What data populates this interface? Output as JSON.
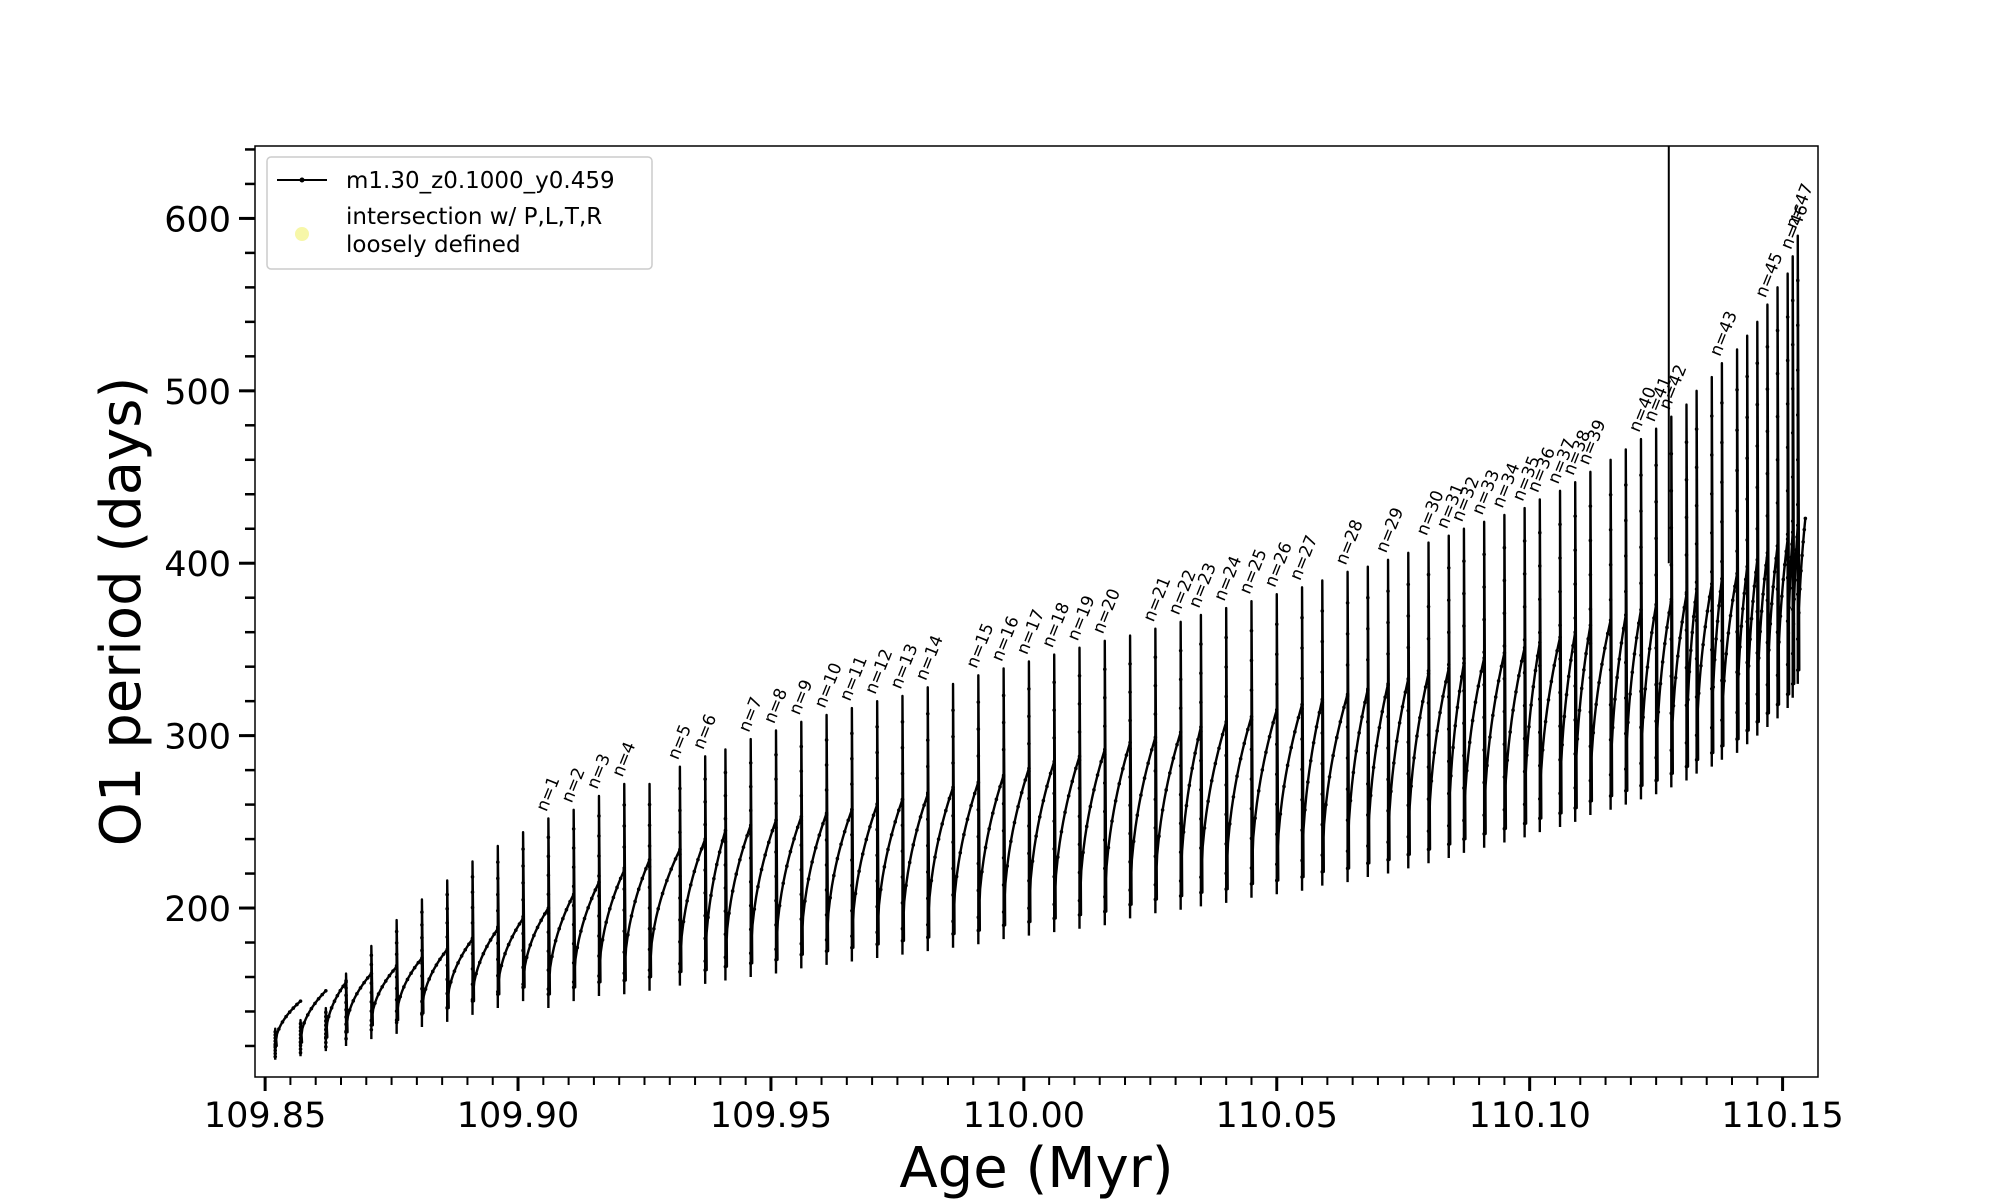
{
  "chart_data": {
    "type": "line",
    "title": "",
    "xlabel": "Age (Myr)",
    "ylabel": "O1 period (days)",
    "xlim": [
      109.848,
      110.157
    ],
    "ylim": [
      102,
      642
    ],
    "xticks": [
      109.85,
      109.9,
      109.95,
      110.0,
      110.05,
      110.1,
      110.15
    ],
    "xtick_labels": [
      "109.85",
      "109.90",
      "109.95",
      "110.00",
      "110.05",
      "110.10",
      "110.15"
    ],
    "yticks": [
      200,
      300,
      400,
      500,
      600
    ],
    "ytick_labels": [
      "200",
      "300",
      "400",
      "500",
      "600"
    ],
    "grid": false,
    "legend": {
      "position": "top-left",
      "entries": [
        {
          "label": "m1.30_z0.1000_y0.459",
          "style": "line-with-dots",
          "color": "#000000"
        },
        {
          "label_lines": [
            "intersection w/ P,L,T,R",
            "loosely defined"
          ],
          "style": "marker",
          "color": "#f7f7a8"
        }
      ]
    },
    "series": [
      {
        "name": "m1.30_z0.1000_y0.459",
        "color": "#000000",
        "description": "sawtooth of thermal pulses; each pulse starts near the lower envelope, spikes to a peak, then relaxes along the rising upper envelope",
        "pulses": [
          {
            "n": null,
            "x": 109.852,
            "low": 112,
            "peak": 130,
            "up": 146
          },
          {
            "n": null,
            "x": 109.857,
            "low": 114,
            "peak": 135,
            "up": 152
          },
          {
            "n": null,
            "x": 109.862,
            "low": 117,
            "peak": 142,
            "up": 157
          },
          {
            "n": null,
            "x": 109.866,
            "low": 120,
            "peak": 162,
            "up": 162
          },
          {
            "n": null,
            "x": 109.871,
            "low": 124,
            "peak": 178,
            "up": 166
          },
          {
            "n": null,
            "x": 109.876,
            "low": 127,
            "peak": 193,
            "up": 171
          },
          {
            "n": null,
            "x": 109.881,
            "low": 131,
            "peak": 205,
            "up": 176
          },
          {
            "n": null,
            "x": 109.886,
            "low": 134,
            "peak": 216,
            "up": 182
          },
          {
            "n": null,
            "x": 109.891,
            "low": 138,
            "peak": 227,
            "up": 188
          },
          {
            "n": null,
            "x": 109.896,
            "low": 142,
            "peak": 236,
            "up": 194
          },
          {
            "n": null,
            "x": 109.901,
            "low": 146,
            "peak": 244,
            "up": 200
          },
          {
            "n": 1,
            "x": 109.906,
            "low": 142,
            "peak": 252,
            "up": 208
          },
          {
            "n": 2,
            "x": 109.911,
            "low": 146,
            "peak": 257,
            "up": 215
          },
          {
            "n": 3,
            "x": 109.916,
            "low": 149,
            "peak": 265,
            "up": 222
          },
          {
            "n": 4,
            "x": 109.921,
            "low": 150,
            "peak": 272,
            "up": 228
          },
          {
            "n": null,
            "x": 109.926,
            "low": 152,
            "peak": 272,
            "up": 234
          },
          {
            "n": 5,
            "x": 109.932,
            "low": 155,
            "peak": 282,
            "up": 240
          },
          {
            "n": 6,
            "x": 109.937,
            "low": 156,
            "peak": 288,
            "up": 245
          },
          {
            "n": null,
            "x": 109.941,
            "low": 158,
            "peak": 292,
            "up": 248
          },
          {
            "n": 7,
            "x": 109.946,
            "low": 160,
            "peak": 298,
            "up": 251
          },
          {
            "n": 8,
            "x": 109.951,
            "low": 162,
            "peak": 303,
            "up": 253
          },
          {
            "n": 9,
            "x": 109.956,
            "low": 165,
            "peak": 308,
            "up": 255
          },
          {
            "n": 10,
            "x": 109.961,
            "low": 167,
            "peak": 312,
            "up": 257
          },
          {
            "n": 11,
            "x": 109.966,
            "low": 169,
            "peak": 316,
            "up": 260
          },
          {
            "n": 12,
            "x": 109.971,
            "low": 171,
            "peak": 320,
            "up": 263
          },
          {
            "n": 13,
            "x": 109.976,
            "low": 173,
            "peak": 323,
            "up": 266
          },
          {
            "n": 14,
            "x": 109.981,
            "low": 175,
            "peak": 328,
            "up": 270
          },
          {
            "n": null,
            "x": 109.986,
            "low": 177,
            "peak": 330,
            "up": 273
          },
          {
            "n": 15,
            "x": 109.991,
            "low": 179,
            "peak": 335,
            "up": 277
          },
          {
            "n": 16,
            "x": 109.996,
            "low": 182,
            "peak": 339,
            "up": 281
          },
          {
            "n": 17,
            "x": 110.001,
            "low": 184,
            "peak": 343,
            "up": 285
          },
          {
            "n": 18,
            "x": 110.006,
            "low": 186,
            "peak": 347,
            "up": 288
          },
          {
            "n": 19,
            "x": 110.011,
            "low": 188,
            "peak": 351,
            "up": 292
          },
          {
            "n": 20,
            "x": 110.016,
            "low": 190,
            "peak": 355,
            "up": 296
          },
          {
            "n": null,
            "x": 110.021,
            "low": 194,
            "peak": 358,
            "up": 299
          },
          {
            "n": 21,
            "x": 110.026,
            "low": 197,
            "peak": 362,
            "up": 302
          },
          {
            "n": 22,
            "x": 110.031,
            "low": 199,
            "peak": 366,
            "up": 305
          },
          {
            "n": 23,
            "x": 110.035,
            "low": 201,
            "peak": 370,
            "up": 308
          },
          {
            "n": 24,
            "x": 110.04,
            "low": 203,
            "peak": 374,
            "up": 311
          },
          {
            "n": 25,
            "x": 110.045,
            "low": 206,
            "peak": 378,
            "up": 315
          },
          {
            "n": 26,
            "x": 110.05,
            "low": 208,
            "peak": 382,
            "up": 318
          },
          {
            "n": 27,
            "x": 110.055,
            "low": 210,
            "peak": 386,
            "up": 321
          },
          {
            "n": null,
            "x": 110.059,
            "low": 213,
            "peak": 390,
            "up": 324
          },
          {
            "n": 28,
            "x": 110.064,
            "low": 215,
            "peak": 395,
            "up": 327
          },
          {
            "n": null,
            "x": 110.068,
            "low": 218,
            "peak": 398,
            "up": 330
          },
          {
            "n": 29,
            "x": 110.072,
            "low": 220,
            "peak": 402,
            "up": 333
          },
          {
            "n": null,
            "x": 110.076,
            "low": 223,
            "peak": 406,
            "up": 336
          },
          {
            "n": 30,
            "x": 110.08,
            "low": 226,
            "peak": 412,
            "up": 339
          },
          {
            "n": 31,
            "x": 110.084,
            "low": 229,
            "peak": 416,
            "up": 342
          },
          {
            "n": 32,
            "x": 110.087,
            "low": 232,
            "peak": 420,
            "up": 345
          },
          {
            "n": 33,
            "x": 110.091,
            "low": 235,
            "peak": 424,
            "up": 348
          },
          {
            "n": 34,
            "x": 110.095,
            "low": 238,
            "peak": 428,
            "up": 351
          },
          {
            "n": 35,
            "x": 110.099,
            "low": 241,
            "peak": 432,
            "up": 354
          },
          {
            "n": 36,
            "x": 110.102,
            "low": 244,
            "peak": 437,
            "up": 357
          },
          {
            "n": 37,
            "x": 110.106,
            "low": 247,
            "peak": 442,
            "up": 360
          },
          {
            "n": 38,
            "x": 110.109,
            "low": 250,
            "peak": 447,
            "up": 364
          },
          {
            "n": 39,
            "x": 110.112,
            "low": 254,
            "peak": 453,
            "up": 367
          },
          {
            "n": null,
            "x": 110.116,
            "low": 257,
            "peak": 460,
            "up": 370
          },
          {
            "n": null,
            "x": 110.119,
            "low": 260,
            "peak": 466,
            "up": 373
          },
          {
            "n": 40,
            "x": 110.122,
            "low": 263,
            "peak": 472,
            "up": 376
          },
          {
            "n": 41,
            "x": 110.125,
            "low": 266,
            "peak": 478,
            "up": 379
          },
          {
            "n": 42,
            "x": 110.128,
            "low": 270,
            "peak": 485,
            "up": 382
          },
          {
            "n": null,
            "x": 110.131,
            "low": 274,
            "peak": 492,
            "up": 385
          },
          {
            "n": null,
            "x": 110.133,
            "low": 278,
            "peak": 500,
            "up": 388
          },
          {
            "n": null,
            "x": 110.136,
            "low": 282,
            "peak": 508,
            "up": 391
          },
          {
            "n": 43,
            "x": 110.138,
            "low": 286,
            "peak": 516,
            "up": 394
          },
          {
            "n": null,
            "x": 110.141,
            "low": 290,
            "peak": 524,
            "up": 398
          },
          {
            "n": null,
            "x": 110.143,
            "low": 295,
            "peak": 532,
            "up": 402
          },
          {
            "n": null,
            "x": 110.145,
            "low": 300,
            "peak": 540,
            "up": 406
          },
          {
            "n": 45,
            "x": 110.147,
            "low": 305,
            "peak": 550,
            "up": 410
          },
          {
            "n": null,
            "x": 110.149,
            "low": 310,
            "peak": 560,
            "up": 414
          },
          {
            "n": null,
            "x": 110.151,
            "low": 316,
            "peak": 568,
            "up": 418
          },
          {
            "n": 46,
            "x": 110.152,
            "low": 322,
            "peak": 578,
            "up": 422
          },
          {
            "n": 47,
            "x": 110.153,
            "low": 330,
            "peak": 590,
            "up": 426
          }
        ]
      }
    ],
    "annotations": [
      {
        "type": "vertical-line",
        "x": 110.1275,
        "y_from": 400,
        "y_to": 642,
        "color": "#000000"
      }
    ]
  }
}
